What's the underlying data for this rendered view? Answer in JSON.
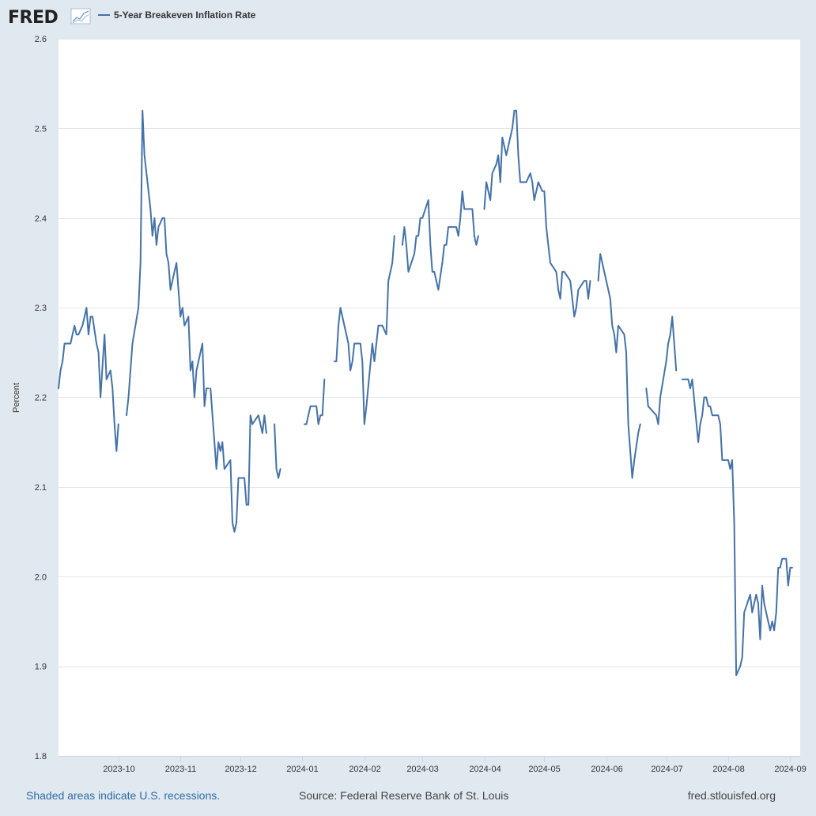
{
  "logo": {
    "text": "FRED",
    "icon": "chart-line-icon"
  },
  "footer": {
    "recession_note": "Shaded areas indicate U.S. recessions.",
    "source": "Source: Federal Reserve Bank of St. Louis",
    "site": "fred.stlouisfed.org"
  },
  "colors": {
    "series": "#4572a7",
    "background": "#e1e9f0",
    "plot": "#ffffff",
    "grid": "#e6e6e6",
    "link": "#2f6aa5"
  },
  "chart_data": {
    "type": "line",
    "title": "",
    "xlabel": "",
    "ylabel": "Percent",
    "ylim": [
      1.8,
      2.6
    ],
    "yticks": [
      1.8,
      1.9,
      2.0,
      2.1,
      2.2,
      2.3,
      2.4,
      2.5,
      2.6
    ],
    "xlim": [
      "2023-09-01",
      "2024-09-06"
    ],
    "xticks": [
      "2023-10",
      "2023-11",
      "2023-12",
      "2024-01",
      "2024-02",
      "2024-03",
      "2024-04",
      "2024-05",
      "2024-06",
      "2024-07",
      "2024-08",
      "2024-09"
    ],
    "grid": true,
    "legend": "top-left",
    "series": [
      {
        "name": "5-Year Breakeven Inflation Rate",
        "color": "#4572a7",
        "points": [
          [
            "2023-09-01",
            2.21
          ],
          [
            "2023-09-02",
            2.23
          ],
          [
            "2023-09-03",
            2.24
          ],
          [
            "2023-09-04",
            2.26
          ],
          [
            "2023-09-06",
            2.26
          ],
          [
            "2023-09-07",
            2.26
          ],
          [
            "2023-09-08",
            2.27
          ],
          [
            "2023-09-09",
            2.28
          ],
          [
            "2023-09-10",
            2.27
          ],
          [
            "2023-09-11",
            2.27
          ],
          [
            "2023-09-13",
            2.28
          ],
          [
            "2023-09-14",
            2.29
          ],
          [
            "2023-09-15",
            2.3
          ],
          [
            "2023-09-16",
            2.27
          ],
          [
            "2023-09-17",
            2.29
          ],
          [
            "2023-09-18",
            2.29
          ],
          [
            "2023-09-20",
            2.26
          ],
          [
            "2023-09-21",
            2.25
          ],
          [
            "2023-09-22",
            2.2
          ],
          [
            "2023-09-24",
            2.27
          ],
          [
            "2023-09-25",
            2.22
          ],
          [
            "2023-09-27",
            2.23
          ],
          [
            "2023-09-28",
            2.21
          ],
          [
            "2023-09-29",
            2.17
          ],
          [
            "2023-09-30",
            2.14
          ],
          [
            "2023-10-01",
            2.17
          ],
          null,
          [
            "2023-10-05",
            2.18
          ],
          [
            "2023-10-06",
            2.2
          ],
          [
            "2023-10-08",
            2.26
          ],
          [
            "2023-10-11",
            2.3
          ],
          [
            "2023-10-12",
            2.35
          ],
          [
            "2023-10-13",
            2.52
          ],
          [
            "2023-10-14",
            2.47
          ],
          [
            "2023-10-16",
            2.43
          ],
          [
            "2023-10-17",
            2.41
          ],
          [
            "2023-10-18",
            2.38
          ],
          [
            "2023-10-19",
            2.4
          ],
          [
            "2023-10-20",
            2.37
          ],
          [
            "2023-10-21",
            2.39
          ],
          [
            "2023-10-23",
            2.4
          ],
          [
            "2023-10-24",
            2.4
          ],
          [
            "2023-10-25",
            2.36
          ],
          [
            "2023-10-26",
            2.35
          ],
          [
            "2023-10-27",
            2.32
          ],
          [
            "2023-10-29",
            2.34
          ],
          [
            "2023-10-30",
            2.35
          ],
          [
            "2023-10-31",
            2.32
          ],
          [
            "2023-11-01",
            2.29
          ],
          [
            "2023-11-02",
            2.3
          ],
          [
            "2023-11-03",
            2.28
          ],
          [
            "2023-11-05",
            2.29
          ],
          [
            "2023-11-06",
            2.23
          ],
          [
            "2023-11-07",
            2.24
          ],
          [
            "2023-11-08",
            2.2
          ],
          [
            "2023-11-09",
            2.23
          ],
          [
            "2023-11-10",
            2.24
          ],
          [
            "2023-11-12",
            2.26
          ],
          [
            "2023-11-13",
            2.19
          ],
          [
            "2023-11-14",
            2.21
          ],
          [
            "2023-11-15",
            2.21
          ],
          null,
          [
            "2023-11-16",
            2.21
          ],
          [
            "2023-11-17",
            2.18
          ],
          [
            "2023-11-19",
            2.12
          ],
          [
            "2023-11-20",
            2.15
          ],
          [
            "2023-11-21",
            2.14
          ],
          [
            "2023-11-22",
            2.15
          ],
          [
            "2023-11-23",
            2.12
          ],
          [
            "2023-11-26",
            2.13
          ],
          [
            "2023-11-27",
            2.06
          ],
          [
            "2023-11-28",
            2.05
          ],
          [
            "2023-11-29",
            2.06
          ],
          [
            "2023-11-30",
            2.11
          ],
          [
            "2023-12-03",
            2.11
          ],
          [
            "2023-12-04",
            2.08
          ],
          [
            "2023-12-05",
            2.08
          ],
          [
            "2023-12-06",
            2.18
          ],
          [
            "2023-12-07",
            2.17
          ],
          [
            "2023-12-10",
            2.18
          ],
          [
            "2023-12-11",
            2.17
          ],
          [
            "2023-12-12",
            2.16
          ],
          [
            "2023-12-13",
            2.18
          ],
          [
            "2023-12-14",
            2.16
          ],
          null,
          [
            "2023-12-18",
            2.17
          ],
          [
            "2023-12-19",
            2.12
          ],
          [
            "2023-12-20",
            2.11
          ],
          [
            "2023-12-21",
            2.12
          ],
          null,
          [
            "2024-01-02",
            2.17
          ],
          [
            "2024-01-03",
            2.17
          ],
          [
            "2024-01-04",
            2.18
          ],
          [
            "2024-01-05",
            2.19
          ],
          [
            "2024-01-08",
            2.19
          ],
          [
            "2024-01-09",
            2.17
          ],
          [
            "2024-01-10",
            2.18
          ],
          [
            "2024-01-11",
            2.18
          ],
          [
            "2024-01-12",
            2.22
          ],
          null,
          [
            "2024-01-17",
            2.24
          ],
          [
            "2024-01-18",
            2.24
          ],
          [
            "2024-01-19",
            2.28
          ],
          [
            "2024-01-20",
            2.3
          ],
          [
            "2024-01-24",
            2.26
          ],
          [
            "2024-01-25",
            2.23
          ],
          [
            "2024-01-26",
            2.24
          ],
          [
            "2024-01-27",
            2.26
          ],
          [
            "2024-01-30",
            2.26
          ],
          [
            "2024-01-31",
            2.24
          ],
          [
            "2024-02-01",
            2.17
          ],
          [
            "2024-02-02",
            2.19
          ],
          [
            "2024-02-05",
            2.26
          ],
          [
            "2024-02-06",
            2.24
          ],
          [
            "2024-02-07",
            2.26
          ],
          [
            "2024-02-08",
            2.28
          ],
          [
            "2024-02-10",
            2.28
          ],
          [
            "2024-02-12",
            2.27
          ],
          [
            "2024-02-13",
            2.33
          ],
          [
            "2024-02-14",
            2.34
          ],
          [
            "2024-02-15",
            2.35
          ],
          [
            "2024-02-16",
            2.38
          ],
          null,
          [
            "2024-02-20",
            2.37
          ],
          [
            "2024-02-21",
            2.39
          ],
          [
            "2024-02-22",
            2.37
          ],
          [
            "2024-02-23",
            2.34
          ],
          [
            "2024-02-26",
            2.36
          ],
          [
            "2024-02-27",
            2.38
          ],
          [
            "2024-02-28",
            2.38
          ],
          [
            "2024-02-29",
            2.4
          ],
          [
            "2024-03-01",
            2.4
          ],
          [
            "2024-03-04",
            2.42
          ],
          [
            "2024-03-05",
            2.37
          ],
          [
            "2024-03-06",
            2.34
          ],
          [
            "2024-03-07",
            2.34
          ],
          [
            "2024-03-08",
            2.33
          ],
          [
            "2024-03-09",
            2.32
          ],
          [
            "2024-03-11",
            2.35
          ],
          [
            "2024-03-12",
            2.37
          ],
          [
            "2024-03-13",
            2.37
          ],
          [
            "2024-03-14",
            2.39
          ],
          [
            "2024-03-15",
            2.39
          ],
          [
            "2024-03-18",
            2.39
          ],
          [
            "2024-03-19",
            2.38
          ],
          [
            "2024-03-20",
            2.4
          ],
          [
            "2024-03-21",
            2.43
          ],
          [
            "2024-03-22",
            2.41
          ],
          [
            "2024-03-25",
            2.41
          ],
          [
            "2024-03-26",
            2.41
          ],
          [
            "2024-03-27",
            2.38
          ],
          [
            "2024-03-28",
            2.37
          ],
          [
            "2024-03-29",
            2.38
          ],
          null,
          [
            "2024-04-01",
            2.41
          ],
          [
            "2024-04-02",
            2.44
          ],
          [
            "2024-04-03",
            2.43
          ],
          [
            "2024-04-04",
            2.42
          ],
          [
            "2024-04-05",
            2.45
          ],
          [
            "2024-04-07",
            2.46
          ],
          [
            "2024-04-08",
            2.47
          ],
          [
            "2024-04-09",
            2.44
          ],
          [
            "2024-04-10",
            2.49
          ],
          [
            "2024-04-11",
            2.48
          ],
          [
            "2024-04-12",
            2.47
          ],
          [
            "2024-04-15",
            2.5
          ],
          [
            "2024-04-16",
            2.52
          ],
          [
            "2024-04-17",
            2.52
          ],
          [
            "2024-04-18",
            2.47
          ],
          [
            "2024-04-19",
            2.44
          ],
          [
            "2024-04-21",
            2.44
          ],
          [
            "2024-04-22",
            2.44
          ],
          [
            "2024-04-24",
            2.45
          ],
          [
            "2024-04-25",
            2.44
          ],
          [
            "2024-04-26",
            2.42
          ],
          [
            "2024-04-27",
            2.43
          ],
          [
            "2024-04-28",
            2.44
          ],
          [
            "2024-04-30",
            2.43
          ],
          [
            "2024-05-01",
            2.43
          ],
          [
            "2024-05-02",
            2.39
          ],
          [
            "2024-05-03",
            2.37
          ],
          [
            "2024-05-04",
            2.35
          ],
          [
            "2024-05-07",
            2.34
          ],
          [
            "2024-05-08",
            2.32
          ],
          [
            "2024-05-09",
            2.31
          ],
          [
            "2024-05-10",
            2.34
          ],
          [
            "2024-05-11",
            2.34
          ],
          [
            "2024-05-14",
            2.33
          ],
          [
            "2024-05-15",
            2.31
          ],
          [
            "2024-05-16",
            2.29
          ],
          [
            "2024-05-17",
            2.3
          ],
          [
            "2024-05-18",
            2.32
          ],
          [
            "2024-05-21",
            2.33
          ],
          [
            "2024-05-22",
            2.33
          ],
          [
            "2024-05-23",
            2.31
          ],
          [
            "2024-05-24",
            2.33
          ],
          null,
          [
            "2024-05-28",
            2.33
          ],
          [
            "2024-05-29",
            2.36
          ],
          [
            "2024-05-30",
            2.35
          ],
          [
            "2024-06-03",
            2.31
          ],
          [
            "2024-06-04",
            2.28
          ],
          [
            "2024-06-05",
            2.27
          ],
          [
            "2024-06-06",
            2.25
          ],
          [
            "2024-06-07",
            2.28
          ],
          [
            "2024-06-10",
            2.27
          ],
          [
            "2024-06-11",
            2.25
          ],
          [
            "2024-06-12",
            2.17
          ],
          [
            "2024-06-13",
            2.14
          ],
          [
            "2024-06-14",
            2.11
          ],
          [
            "2024-06-15",
            2.13
          ],
          [
            "2024-06-17",
            2.16
          ],
          [
            "2024-06-18",
            2.17
          ],
          null,
          [
            "2024-06-21",
            2.21
          ],
          [
            "2024-06-22",
            2.19
          ],
          [
            "2024-06-26",
            2.18
          ],
          [
            "2024-06-27",
            2.17
          ],
          [
            "2024-06-28",
            2.2
          ],
          [
            "2024-07-01",
            2.24
          ],
          [
            "2024-07-02",
            2.26
          ],
          [
            "2024-07-03",
            2.27
          ],
          [
            "2024-07-04",
            2.29
          ],
          [
            "2024-07-05",
            2.26
          ],
          [
            "2024-07-06",
            2.23
          ],
          null,
          [
            "2024-07-09",
            2.22
          ],
          [
            "2024-07-10",
            2.22
          ],
          [
            "2024-07-11",
            2.22
          ],
          [
            "2024-07-12",
            2.22
          ],
          [
            "2024-07-13",
            2.21
          ],
          [
            "2024-07-14",
            2.22
          ],
          [
            "2024-07-17",
            2.15
          ],
          [
            "2024-07-18",
            2.17
          ],
          [
            "2024-07-19",
            2.18
          ],
          [
            "2024-07-20",
            2.2
          ],
          [
            "2024-07-21",
            2.2
          ],
          [
            "2024-07-22",
            2.19
          ],
          [
            "2024-07-23",
            2.19
          ],
          [
            "2024-07-24",
            2.18
          ],
          [
            "2024-07-25",
            2.18
          ],
          [
            "2024-07-26",
            2.18
          ],
          [
            "2024-07-27",
            2.18
          ],
          [
            "2024-07-28",
            2.17
          ],
          [
            "2024-07-29",
            2.13
          ],
          [
            "2024-07-30",
            2.13
          ],
          [
            "2024-07-31",
            2.13
          ],
          [
            "2024-08-01",
            2.13
          ],
          [
            "2024-08-02",
            2.12
          ],
          [
            "2024-08-03",
            2.13
          ],
          [
            "2024-08-04",
            2.06
          ],
          [
            "2024-08-05",
            1.89
          ],
          [
            "2024-08-07",
            1.9
          ],
          [
            "2024-08-08",
            1.91
          ],
          [
            "2024-08-09",
            1.96
          ],
          [
            "2024-08-12",
            1.98
          ],
          [
            "2024-08-13",
            1.96
          ],
          [
            "2024-08-14",
            1.97
          ],
          [
            "2024-08-15",
            1.98
          ],
          [
            "2024-08-16",
            1.97
          ],
          [
            "2024-08-17",
            1.93
          ],
          [
            "2024-08-18",
            1.99
          ],
          [
            "2024-08-19",
            1.97
          ],
          [
            "2024-08-20",
            1.96
          ],
          [
            "2024-08-21",
            1.95
          ],
          [
            "2024-08-22",
            1.94
          ],
          [
            "2024-08-23",
            1.95
          ],
          [
            "2024-08-24",
            1.94
          ],
          [
            "2024-08-25",
            1.96
          ],
          [
            "2024-08-26",
            2.01
          ],
          [
            "2024-08-27",
            2.01
          ],
          [
            "2024-08-28",
            2.02
          ],
          [
            "2024-08-29",
            2.02
          ],
          [
            "2024-08-30",
            2.02
          ],
          [
            "2024-08-31",
            1.99
          ],
          [
            "2024-09-01",
            2.01
          ],
          [
            "2024-09-02",
            2.01
          ]
        ]
      }
    ]
  }
}
